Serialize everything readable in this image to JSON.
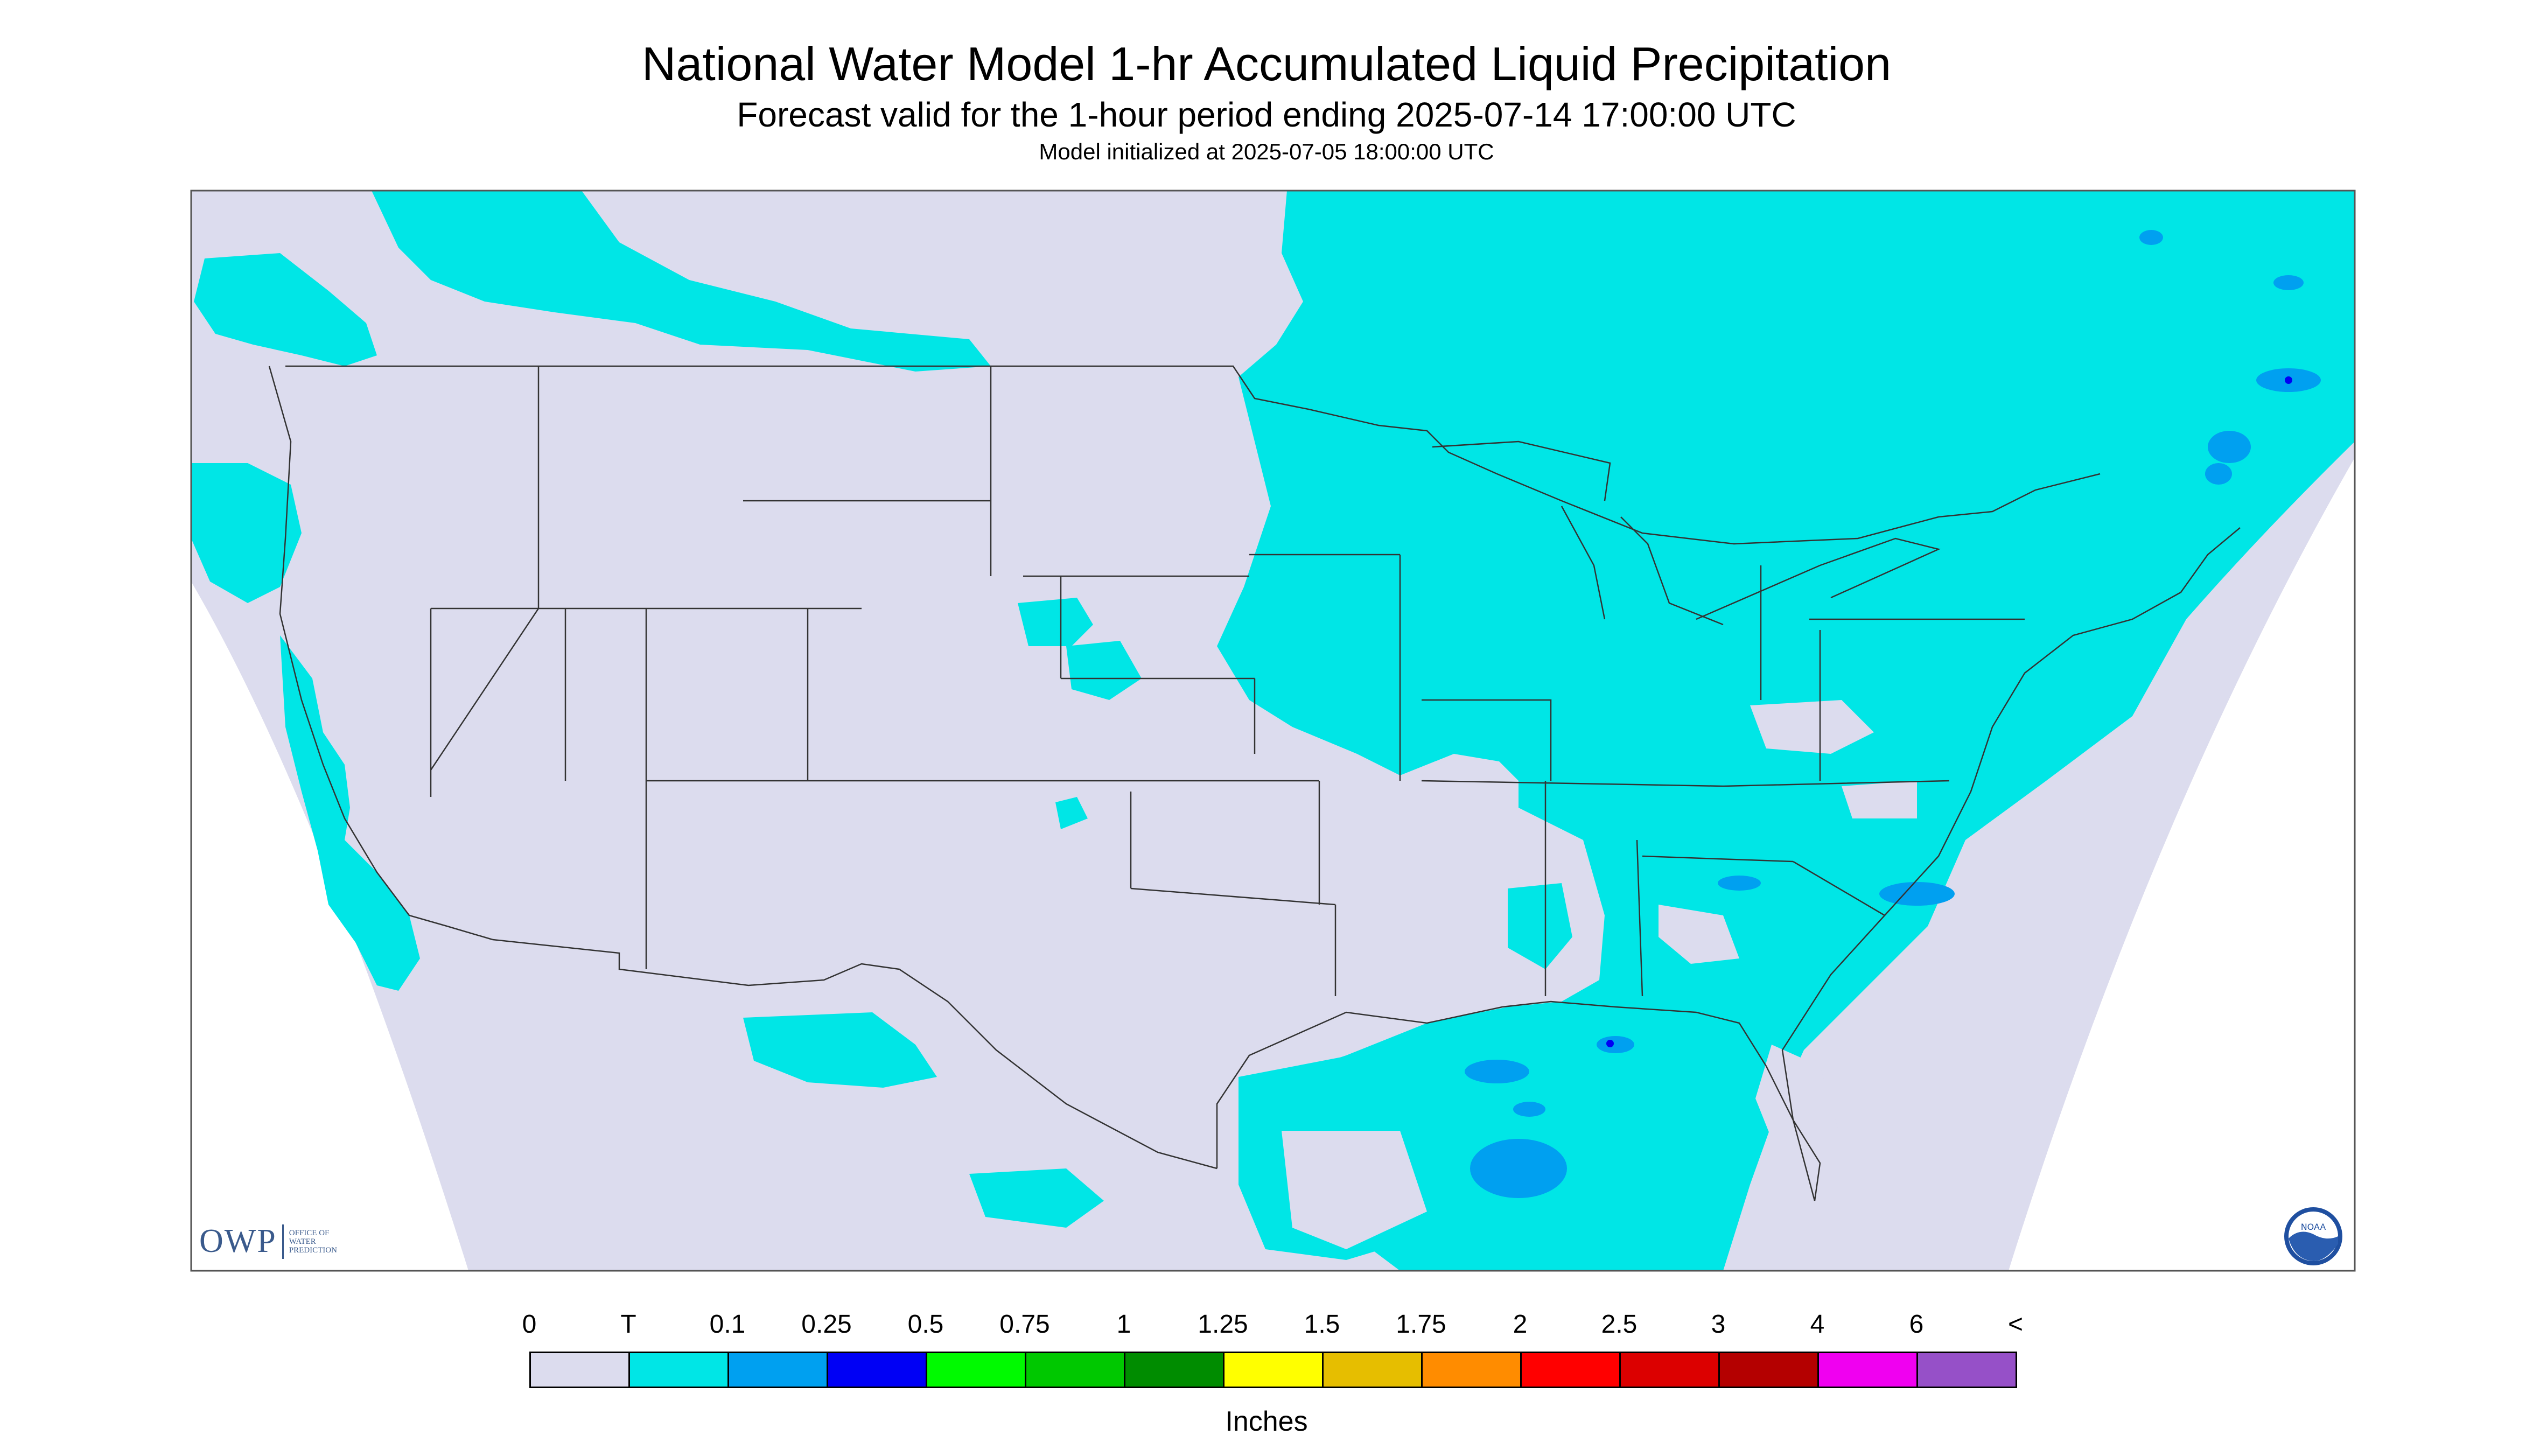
{
  "title": "National Water Model 1-hr Accumulated Liquid Precipitation",
  "subtitle": "Forecast valid for the 1-hour period ending 2025-07-14 17:00:00 UTC",
  "init_line": "Model initialized at 2025-07-05 18:00:00 UTC",
  "logo": {
    "owp": "OWP",
    "owp_sub": [
      "OFFICE OF",
      "WATER",
      "PREDICTION"
    ],
    "noaa": "NOAA"
  },
  "legend": {
    "ticks": [
      "0",
      "T",
      "0.1",
      "0.25",
      "0.5",
      "0.75",
      "1",
      "1.25",
      "1.5",
      "1.75",
      "2",
      "2.5",
      "3",
      "4",
      "6",
      "<"
    ],
    "colors": [
      "#dcdcee",
      "#00e6e6",
      "#00a0f0",
      "#0000f5",
      "#00fa00",
      "#00c800",
      "#008c00",
      "#ffff00",
      "#e6be00",
      "#ff8c00",
      "#ff0000",
      "#dc0000",
      "#b40000",
      "#f000f0",
      "#9650c8"
    ],
    "units": "Inches"
  },
  "colors": {
    "no_precip": "#dcdcee",
    "trace": "#00e6e6",
    "light": "#00a0f0",
    "dark": "#0000f5",
    "background": "#ffffff",
    "boundary": "#333333"
  }
}
